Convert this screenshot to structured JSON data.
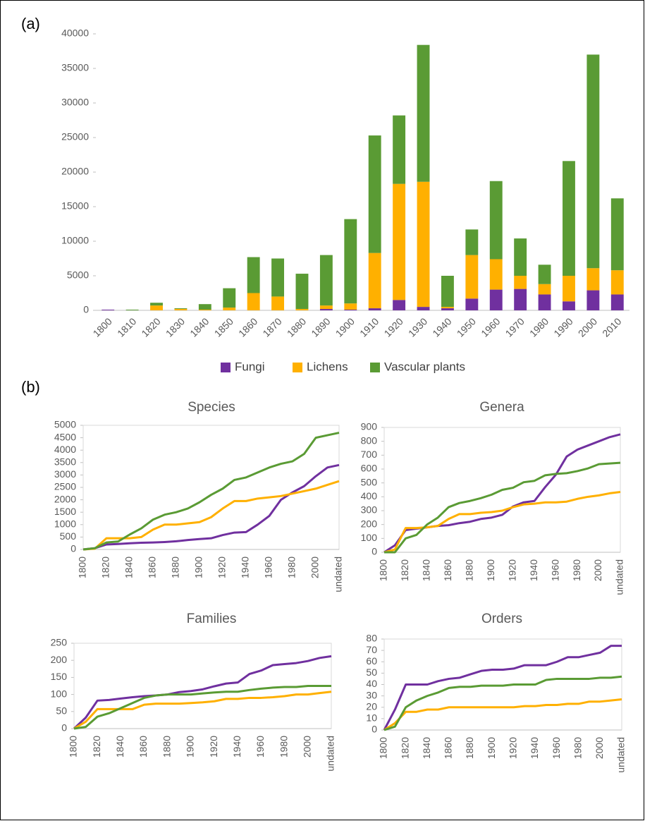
{
  "panels": [
    "(a)",
    "(b)"
  ],
  "chart_data": [
    {
      "type": "bar",
      "stacked": true,
      "legend": "bottom",
      "categories": [
        "1800",
        "1810",
        "1820",
        "1830",
        "1840",
        "1850",
        "1860",
        "1870",
        "1880",
        "1890",
        "1900",
        "1910",
        "1920",
        "1930",
        "1940",
        "1950",
        "1960",
        "1970",
        "1980",
        "1990",
        "2000",
        "2010"
      ],
      "series": [
        {
          "name": "Fungi",
          "color": "#70309f",
          "values": [
            100,
            0,
            0,
            0,
            0,
            0,
            0,
            0,
            0,
            200,
            100,
            300,
            1500,
            500,
            300,
            1700,
            3000,
            3100,
            2300,
            1300,
            2900,
            2300
          ]
        },
        {
          "name": "Lichens",
          "color": "#ffb000",
          "values": [
            0,
            0,
            700,
            200,
            100,
            400,
            2500,
            2000,
            200,
            500,
            900,
            8000,
            16800,
            18100,
            200,
            6300,
            4400,
            1900,
            1500,
            3700,
            3200,
            3500
          ]
        },
        {
          "name": "Vascular plants",
          "color": "#5a9b34",
          "values": [
            0,
            100,
            400,
            100,
            800,
            2800,
            5200,
            5500,
            5100,
            7300,
            12200,
            17000,
            9900,
            19800,
            4500,
            3700,
            11300,
            5400,
            2800,
            16600,
            30900,
            10400
          ]
        }
      ],
      "ylim": [
        0,
        40000
      ],
      "yticks": [
        0,
        5000,
        10000,
        15000,
        20000,
        25000,
        30000,
        35000,
        40000
      ]
    },
    {
      "type": "line",
      "title": "Species",
      "categories": [
        "1800",
        null,
        "1820",
        null,
        "1840",
        null,
        "1860",
        null,
        "1880",
        null,
        "1900",
        null,
        "1920",
        null,
        "1940",
        null,
        "1960",
        null,
        "1980",
        null,
        "2000",
        null,
        "undated"
      ],
      "series": [
        {
          "name": "Fungi",
          "color": "#70309f",
          "values": [
            0,
            50,
            200,
            220,
            250,
            270,
            280,
            300,
            330,
            380,
            420,
            450,
            580,
            680,
            700,
            1000,
            1350,
            2000,
            2300,
            2550,
            2950,
            3300,
            3400
          ]
        },
        {
          "name": "Lichens",
          "color": "#ffb000",
          "values": [
            0,
            30,
            450,
            450,
            450,
            500,
            800,
            1000,
            1000,
            1050,
            1100,
            1300,
            1650,
            1950,
            1950,
            2050,
            2100,
            2150,
            2250,
            2350,
            2450,
            2600,
            2750
          ]
        },
        {
          "name": "Vascular plants",
          "color": "#5a9b34",
          "values": [
            0,
            50,
            280,
            320,
            600,
            850,
            1200,
            1400,
            1500,
            1650,
            1900,
            2200,
            2450,
            2800,
            2900,
            3100,
            3300,
            3450,
            3550,
            3850,
            4500,
            4600,
            4700
          ]
        }
      ],
      "ylim": [
        0,
        5000
      ],
      "yticks": [
        0,
        500,
        1000,
        1500,
        2000,
        2500,
        3000,
        3500,
        4000,
        4500,
        5000
      ]
    },
    {
      "type": "line",
      "title": "Genera",
      "categories": [
        "1800",
        null,
        "1820",
        null,
        "1840",
        null,
        "1860",
        null,
        "1880",
        null,
        "1900",
        null,
        "1920",
        null,
        "1940",
        null,
        "1960",
        null,
        "1980",
        null,
        "2000",
        null,
        "undated"
      ],
      "series": [
        {
          "name": "Fungi",
          "color": "#70309f",
          "values": [
            0,
            50,
            160,
            170,
            180,
            190,
            195,
            210,
            220,
            240,
            250,
            270,
            330,
            360,
            370,
            470,
            560,
            690,
            740,
            770,
            800,
            830,
            850
          ]
        },
        {
          "name": "Lichens",
          "color": "#ffb000",
          "values": [
            0,
            20,
            175,
            175,
            180,
            190,
            240,
            275,
            275,
            285,
            290,
            300,
            325,
            345,
            350,
            360,
            360,
            365,
            385,
            400,
            410,
            425,
            435
          ]
        },
        {
          "name": "Vascular plants",
          "color": "#5a9b34",
          "values": [
            0,
            0,
            100,
            125,
            200,
            250,
            325,
            355,
            370,
            390,
            415,
            450,
            465,
            505,
            515,
            555,
            565,
            570,
            585,
            605,
            635,
            640,
            645
          ]
        }
      ],
      "ylim": [
        0,
        900
      ],
      "yticks": [
        0,
        100,
        200,
        300,
        400,
        500,
        600,
        700,
        800,
        900
      ]
    },
    {
      "type": "line",
      "title": "Families",
      "categories": [
        "1800",
        null,
        "1820",
        null,
        "1840",
        null,
        "1860",
        null,
        "1880",
        null,
        "1900",
        null,
        "1920",
        null,
        "1940",
        null,
        "1960",
        null,
        "1980",
        null,
        "2000",
        null,
        "undated"
      ],
      "series": [
        {
          "name": "Fungi",
          "color": "#70309f",
          "values": [
            0,
            32,
            82,
            84,
            88,
            92,
            95,
            97,
            100,
            107,
            110,
            115,
            124,
            132,
            135,
            160,
            170,
            186,
            189,
            192,
            198,
            207,
            212
          ]
        },
        {
          "name": "Lichens",
          "color": "#ffb000",
          "values": [
            0,
            20,
            57,
            57,
            57,
            57,
            70,
            73,
            73,
            73,
            75,
            77,
            80,
            87,
            87,
            90,
            90,
            92,
            95,
            100,
            100,
            104,
            108
          ]
        },
        {
          "name": "Vascular plants",
          "color": "#5a9b34",
          "values": [
            0,
            5,
            35,
            45,
            60,
            75,
            90,
            97,
            100,
            100,
            100,
            103,
            106,
            108,
            108,
            113,
            117,
            120,
            122,
            122,
            125,
            125,
            125
          ]
        }
      ],
      "ylim": [
        0,
        250
      ],
      "yticks": [
        0,
        50,
        100,
        150,
        200,
        250
      ]
    },
    {
      "type": "line",
      "title": "Orders",
      "categories": [
        "1800",
        null,
        "1820",
        null,
        "1840",
        null,
        "1860",
        null,
        "1880",
        null,
        "1900",
        null,
        "1920",
        null,
        "1940",
        null,
        "1960",
        null,
        "1980",
        null,
        "2000",
        null,
        "undated"
      ],
      "series": [
        {
          "name": "Fungi",
          "color": "#70309f",
          "values": [
            0,
            18,
            40,
            40,
            40,
            43,
            45,
            46,
            49,
            52,
            53,
            53,
            54,
            57,
            57,
            57,
            60,
            64,
            64,
            66,
            68,
            74,
            74
          ]
        },
        {
          "name": "Lichens",
          "color": "#ffb000",
          "values": [
            0,
            6,
            16,
            16,
            18,
            18,
            20,
            20,
            20,
            20,
            20,
            20,
            20,
            21,
            21,
            22,
            22,
            23,
            23,
            25,
            25,
            26,
            27
          ]
        },
        {
          "name": "Vascular plants",
          "color": "#5a9b34",
          "values": [
            0,
            3,
            20,
            26,
            30,
            33,
            37,
            38,
            38,
            39,
            39,
            39,
            40,
            40,
            40,
            44,
            45,
            45,
            45,
            45,
            46,
            46,
            47
          ]
        }
      ],
      "ylim": [
        0,
        80
      ],
      "yticks": [
        0,
        10,
        20,
        30,
        40,
        50,
        60,
        70,
        80
      ]
    }
  ]
}
